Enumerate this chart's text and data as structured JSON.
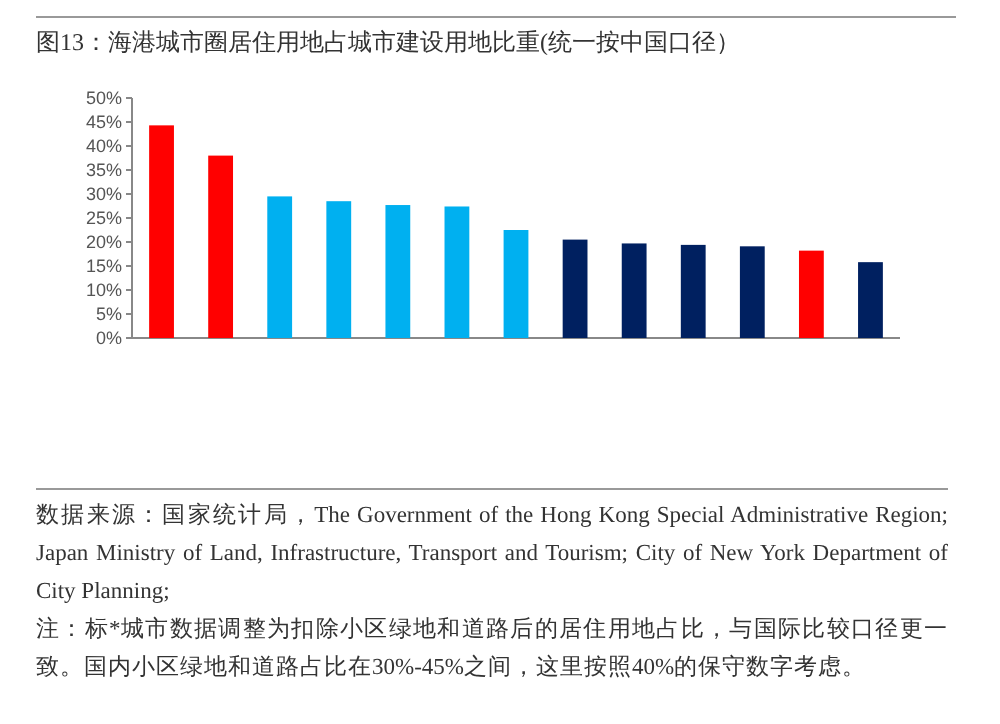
{
  "chart_data": {
    "type": "bar",
    "title": "图13：海港城市圈居住用地占城市建设用地比重(统一按中国口径）",
    "categories": [
      null,
      null,
      null,
      null,
      null,
      null,
      null,
      null,
      null,
      null,
      null,
      null,
      null
    ],
    "values": [
      44.3,
      38.0,
      29.5,
      28.5,
      27.7,
      27.4,
      22.5,
      20.5,
      19.7,
      19.4,
      19.1,
      18.2,
      15.8
    ],
    "colors": [
      "#ff0000",
      "#ff0000",
      "#00b0f0",
      "#00b0f0",
      "#00b0f0",
      "#00b0f0",
      "#00b0f0",
      "#002060",
      "#002060",
      "#002060",
      "#002060",
      "#ff0000",
      "#002060"
    ],
    "ylim": [
      0,
      50
    ],
    "yticks": [
      {
        "value": 0,
        "label": "0%"
      },
      {
        "value": 5,
        "label": "5%"
      },
      {
        "value": 10,
        "label": "10%"
      },
      {
        "value": 15,
        "label": "15%"
      },
      {
        "value": 20,
        "label": "20%"
      },
      {
        "value": 25,
        "label": "25%"
      },
      {
        "value": 30,
        "label": "30%"
      },
      {
        "value": 35,
        "label": "35%"
      },
      {
        "value": 40,
        "label": "40%"
      },
      {
        "value": 45,
        "label": "45%"
      },
      {
        "value": 50,
        "label": "50%"
      }
    ],
    "annotations": [
      "数据来源：国家统计局，The Government of the Hong Kong Special Administrative Region; Japan Ministry of Land, Infrastructure, Transport and Tourism;  City of New York Department of City Planning;",
      "注：标*城市数据调整为扣除小区绿地和道路后的居住用地占比，与国际比较口径更一致。国内小区绿地和道路占比在30%-45%之间，这里按照40%的保守数字考虑。"
    ]
  }
}
